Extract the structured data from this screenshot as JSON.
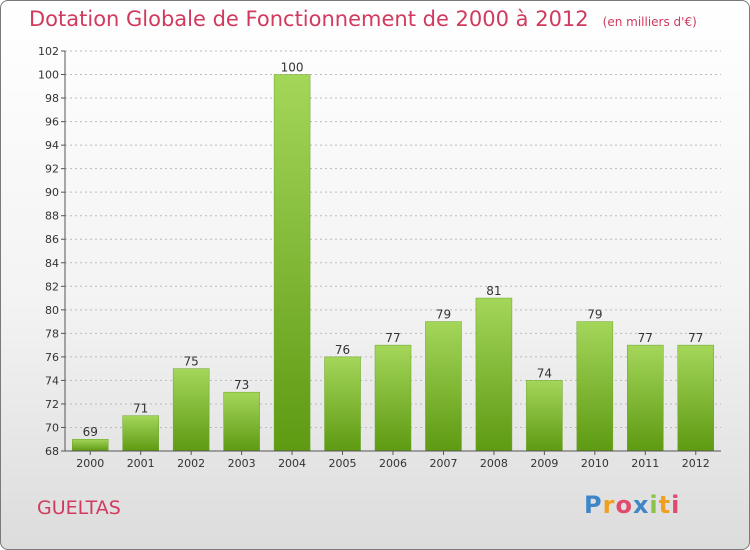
{
  "title": "Dotation Globale de Fonctionnement de 2000 à 2012",
  "unit": "(en milliers d'€)",
  "commune": "GUELTAS",
  "logo": {
    "letters": [
      "P",
      "r",
      "o",
      "x",
      "i",
      "t",
      "i"
    ],
    "colors": [
      "#3f86c8",
      "#f0a020",
      "#e04a6e",
      "#3f86c8",
      "#8bc34a",
      "#f0a020",
      "#e04a6e"
    ]
  },
  "colors": {
    "bar_top": "#a4d65a",
    "bar_bottom": "#5e9a12",
    "title": "#d13a5e",
    "axis": "#555555",
    "grid": "#bbbbbb"
  },
  "chart_data": {
    "type": "bar",
    "title": "Dotation Globale de Fonctionnement de 2000 à 2012",
    "xlabel": "",
    "ylabel": "en milliers d'€",
    "categories": [
      "2000",
      "2001",
      "2002",
      "2003",
      "2004",
      "2005",
      "2006",
      "2007",
      "2008",
      "2009",
      "2010",
      "2011",
      "2012"
    ],
    "values": [
      69,
      71,
      75,
      73,
      100,
      76,
      77,
      79,
      81,
      74,
      79,
      77,
      77
    ],
    "ylim": [
      68,
      102
    ],
    "yticks": [
      68,
      70,
      72,
      74,
      76,
      78,
      80,
      82,
      84,
      86,
      88,
      90,
      92,
      94,
      96,
      98,
      100,
      102
    ],
    "grid": "horizontal dashed"
  }
}
